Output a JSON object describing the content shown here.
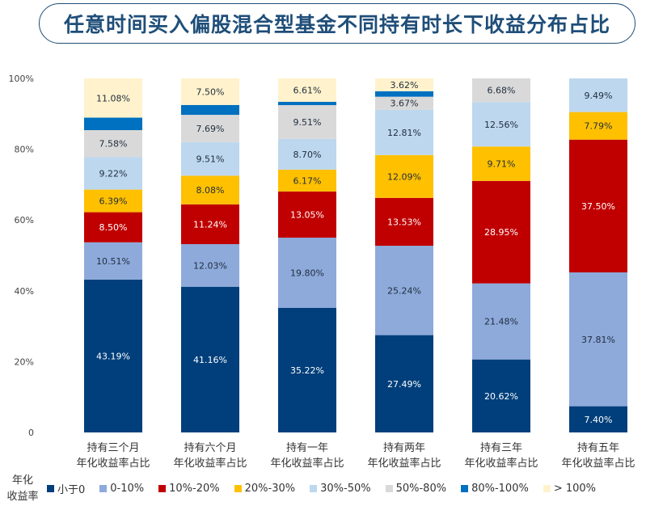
{
  "chart_data": {
    "type": "bar",
    "stacked": true,
    "title": "任意时间买入偏股混合型基金不同持有时长下收益分布占比",
    "categories": [
      [
        "持有三个月",
        "年化收益率占比"
      ],
      [
        "持有六个月",
        "年化收益率占比"
      ],
      [
        "持有一年",
        "年化收益率占比"
      ],
      [
        "持有两年",
        "年化收益率占比"
      ],
      [
        "持有三年",
        "年化收益率占比"
      ],
      [
        "持有五年",
        "年化收益率占比"
      ]
    ],
    "ylim": [
      0,
      100
    ],
    "yticks": [
      "0",
      "20%",
      "40%",
      "60%",
      "80%",
      "100%"
    ],
    "ytick_values": [
      0,
      20,
      40,
      60,
      80,
      100
    ],
    "grid": false,
    "legend_title": [
      "年化",
      "收益率"
    ],
    "legend_position": "bottom",
    "series": [
      {
        "name": "小于0",
        "color": "#003f7b",
        "label_color": "#ffffff",
        "data_labels": true,
        "values": [
          43.19,
          41.16,
          35.22,
          27.49,
          20.62,
          7.4
        ]
      },
      {
        "name": "0-10%",
        "color": "#8eaadb",
        "label_color": "#1f2d3d",
        "data_labels": true,
        "values": [
          10.51,
          12.03,
          19.8,
          25.24,
          21.48,
          37.81
        ]
      },
      {
        "name": "10%-20%",
        "color": "#c00000",
        "label_color": "#ffffff",
        "data_labels": true,
        "values": [
          8.5,
          11.24,
          13.05,
          13.53,
          28.95,
          37.5
        ]
      },
      {
        "name": "20%-30%",
        "color": "#ffc000",
        "label_color": "#1f2d3d",
        "data_labels": true,
        "values": [
          6.39,
          8.08,
          6.17,
          12.09,
          9.71,
          7.79
        ]
      },
      {
        "name": "30%-50%",
        "color": "#bdd7ee",
        "label_color": "#1f2d3d",
        "data_labels": true,
        "values": [
          9.22,
          9.51,
          8.7,
          12.81,
          12.56,
          9.49
        ]
      },
      {
        "name": "50%-80%",
        "color": "#d9d9d9",
        "label_color": "#1f2d3d",
        "data_labels": true,
        "values": [
          7.58,
          7.69,
          9.51,
          3.67,
          6.68,
          0
        ]
      },
      {
        "name": "80%-100%",
        "color": "#0070c0",
        "label_color": "#ffffff",
        "data_labels": false,
        "values": [
          3.53,
          2.79,
          0.94,
          1.55,
          0,
          0
        ]
      },
      {
        "name": "> 100%",
        "color": "#fff2cc",
        "label_color": "#1f2d3d",
        "data_labels": true,
        "values": [
          11.08,
          7.5,
          6.61,
          3.62,
          0,
          0
        ]
      }
    ]
  }
}
